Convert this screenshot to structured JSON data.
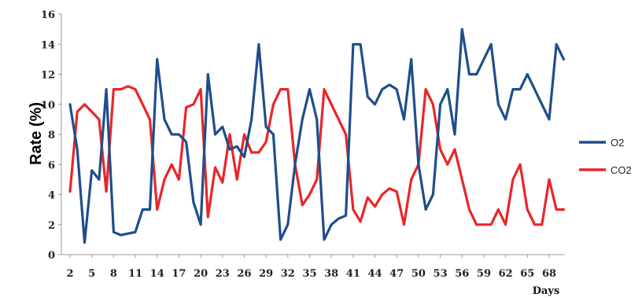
{
  "chart_data": {
    "type": "line",
    "xlabel": "Days",
    "ylabel": "Rate (%)",
    "ylim": [
      0,
      16
    ],
    "yticks": [
      0,
      2,
      4,
      6,
      8,
      10,
      12,
      14,
      16
    ],
    "xlim": [
      2,
      70
    ],
    "xticks": [
      2,
      5,
      8,
      11,
      14,
      17,
      20,
      23,
      26,
      29,
      32,
      35,
      38,
      41,
      44,
      47,
      50,
      53,
      56,
      59,
      62,
      65,
      68
    ],
    "grid": false,
    "legend_position": "right",
    "series": [
      {
        "name": "O2",
        "color": "#1f4e8c",
        "x": [
          2,
          3,
          4,
          5,
          6,
          7,
          8,
          9,
          10,
          11,
          12,
          13,
          14,
          15,
          16,
          17,
          18,
          19,
          20,
          21,
          22,
          23,
          24,
          25,
          26,
          27,
          28,
          29,
          30,
          31,
          32,
          33,
          34,
          35,
          36,
          37,
          38,
          39,
          40,
          41,
          42,
          43,
          44,
          45,
          46,
          47,
          48,
          49,
          50,
          51,
          52,
          53,
          54,
          55,
          56,
          57,
          58,
          59,
          60,
          61,
          62,
          63,
          64,
          65,
          66,
          67,
          68,
          69,
          70
        ],
        "values": [
          10,
          7,
          0.8,
          5.6,
          5,
          11,
          1.5,
          1.3,
          1.4,
          1.5,
          3,
          3,
          13,
          9,
          8,
          8,
          7.5,
          3.5,
          2,
          12,
          8,
          8.5,
          7,
          7.2,
          6.5,
          9,
          14,
          8.5,
          8,
          1,
          2,
          6,
          9,
          11,
          9,
          1,
          2,
          2.4,
          2.6,
          14,
          14,
          10.5,
          10,
          11,
          11.3,
          11,
          9,
          13,
          6,
          3,
          4,
          10,
          11,
          8,
          15,
          12,
          12,
          13,
          14,
          10,
          9,
          11,
          11,
          12,
          11,
          10,
          9,
          14,
          13
        ]
      },
      {
        "name": "CO2",
        "color": "#e8262a",
        "x": [
          2,
          3,
          4,
          5,
          6,
          7,
          8,
          9,
          10,
          11,
          12,
          13,
          14,
          15,
          16,
          17,
          18,
          19,
          20,
          21,
          22,
          23,
          24,
          25,
          26,
          27,
          28,
          29,
          30,
          31,
          32,
          33,
          34,
          35,
          36,
          37,
          38,
          39,
          40,
          41,
          42,
          43,
          44,
          45,
          46,
          47,
          48,
          49,
          50,
          51,
          52,
          53,
          54,
          55,
          56,
          57,
          58,
          59,
          60,
          61,
          62,
          63,
          64,
          65,
          66,
          67,
          68,
          69,
          70
        ],
        "values": [
          4.2,
          9.5,
          10,
          9.5,
          9,
          4.2,
          11,
          11,
          11.2,
          11,
          10,
          9,
          3,
          5,
          6,
          5,
          9.8,
          10,
          11,
          2.5,
          5.8,
          4.8,
          8,
          5,
          8,
          6.8,
          6.8,
          7.5,
          10,
          11,
          11,
          6,
          3.3,
          4,
          5,
          11,
          10,
          9,
          8,
          3,
          2.2,
          3.8,
          3.2,
          4,
          4.4,
          4.2,
          2,
          5,
          6,
          11,
          10,
          7,
          6,
          7,
          5,
          3,
          2,
          2,
          2,
          3,
          2,
          5,
          6,
          3,
          2,
          2,
          5,
          3,
          3
        ]
      }
    ]
  }
}
